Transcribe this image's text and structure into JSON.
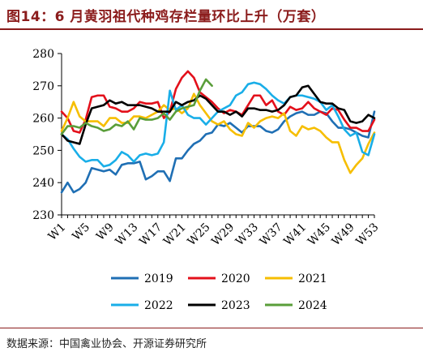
{
  "title": "图14：6 月黄羽祖代种鸡存栏量环比上升（万套）",
  "source": "数据来源：中国禽业协会、开源证券研究所",
  "chart_data": {
    "type": "line",
    "title": "图14：6 月黄羽祖代种鸡存栏量环比上升（万套）",
    "xlabel": "",
    "ylabel": "",
    "ylim": [
      230,
      280
    ],
    "yticks": [
      230,
      240,
      250,
      260,
      270,
      280
    ],
    "x_count": 53,
    "xtick_labels": [
      "W1",
      "W5",
      "W9",
      "W13",
      "W17",
      "W21",
      "W25",
      "W29",
      "W33",
      "W37",
      "W41",
      "W45",
      "W49",
      "W53"
    ],
    "xtick_positions": [
      1,
      5,
      9,
      13,
      17,
      21,
      25,
      29,
      33,
      37,
      41,
      45,
      49,
      53
    ],
    "grid": false,
    "legend_position": "bottom",
    "series": [
      {
        "name": "2019",
        "color": "#1f6fb4",
        "values": [
          237,
          240,
          237,
          238,
          240,
          244.5,
          244,
          243.5,
          244,
          242.5,
          245.5,
          246,
          246,
          246.5,
          241,
          242,
          243.5,
          243.5,
          240.5,
          247.5,
          247.5,
          250,
          252,
          253,
          255,
          255.5,
          258,
          257.5,
          258.5,
          257,
          255.5,
          257.5,
          257.5,
          257.5,
          256,
          255.5,
          256.5,
          259,
          260.5,
          261.5,
          262,
          261,
          261,
          262,
          261.5,
          259,
          257,
          257,
          256.5,
          255.5,
          254.5,
          254,
          262
        ]
      },
      {
        "name": "2020",
        "color": "#e3101b",
        "values": [
          262,
          260,
          256,
          255.5,
          259.5,
          266.5,
          267,
          267,
          263.5,
          263,
          262,
          262,
          263,
          265,
          264.5,
          264.5,
          265,
          260,
          262,
          269,
          272.5,
          274.5,
          272.5,
          268,
          266.5,
          265,
          263,
          261.5,
          262.5,
          262,
          261,
          264,
          267,
          267,
          264,
          265.5,
          262,
          261,
          263.5,
          262.5,
          263,
          265,
          263,
          262,
          261,
          263,
          262.5,
          259.5,
          257,
          257,
          256,
          256,
          259.5
        ]
      },
      {
        "name": "2021",
        "color": "#f6be00",
        "values": [
          256,
          260,
          265,
          260.5,
          259,
          259,
          259,
          257.5,
          260,
          260,
          258.5,
          258.5,
          260.5,
          260.5,
          260,
          261,
          262,
          264,
          262.5,
          263,
          261.5,
          263,
          267.5,
          264,
          261.5,
          259,
          258,
          259,
          256.5,
          255,
          254.5,
          258.5,
          257,
          259,
          260,
          260.5,
          260,
          261.5,
          256,
          254.5,
          257.5,
          256.5,
          257,
          256,
          254,
          252.5,
          252.5,
          247,
          243,
          245.5,
          247.5,
          252,
          255.5
        ]
      },
      {
        "name": "2022",
        "color": "#19aee8",
        "values": [
          255,
          253.5,
          250.5,
          248,
          246.5,
          247,
          247,
          245,
          245.5,
          247,
          249.5,
          248.5,
          246.5,
          248.5,
          249,
          248.5,
          249,
          252.5,
          268.5,
          262.5,
          264,
          261,
          260,
          260,
          258,
          260,
          262,
          263,
          264,
          267,
          268,
          270.5,
          271,
          270.5,
          269,
          267,
          265.5,
          264.5,
          266.5,
          267,
          267,
          266.5,
          266,
          265,
          262.5,
          264,
          260.5,
          256.5,
          254.5,
          255.5,
          249.5,
          248.5,
          255
        ]
      },
      {
        "name": "2023",
        "color": "#000000",
        "values": [
          255,
          253,
          252.5,
          252,
          258,
          263,
          263.5,
          264,
          265.5,
          264.5,
          265,
          264,
          264,
          264,
          263.5,
          263,
          262,
          262,
          262,
          265,
          264,
          265,
          265.5,
          267,
          266,
          264,
          262,
          262,
          261,
          262,
          260.5,
          263,
          263,
          262.5,
          262.5,
          262,
          262.5,
          264,
          266.5,
          267,
          269.5,
          270,
          267.5,
          265,
          264.5,
          264.5,
          263,
          262.5,
          259,
          258.5,
          259,
          261,
          260
        ]
      },
      {
        "name": "2024",
        "color": "#5a9e3a",
        "values": [
          255,
          257.5,
          257.5,
          257,
          258.5,
          257.5,
          257,
          256,
          256.5,
          258,
          257.5,
          259,
          256.5,
          260,
          259.5,
          259.5,
          260,
          261.5,
          259.5,
          262,
          263,
          263.5,
          264,
          268.5,
          272,
          270,
          null,
          null,
          null,
          null,
          null,
          null,
          null,
          null,
          null,
          null,
          null,
          null,
          null,
          null,
          null,
          null,
          null,
          null,
          null,
          null,
          null,
          null,
          null,
          null,
          null,
          null,
          null
        ]
      }
    ]
  }
}
